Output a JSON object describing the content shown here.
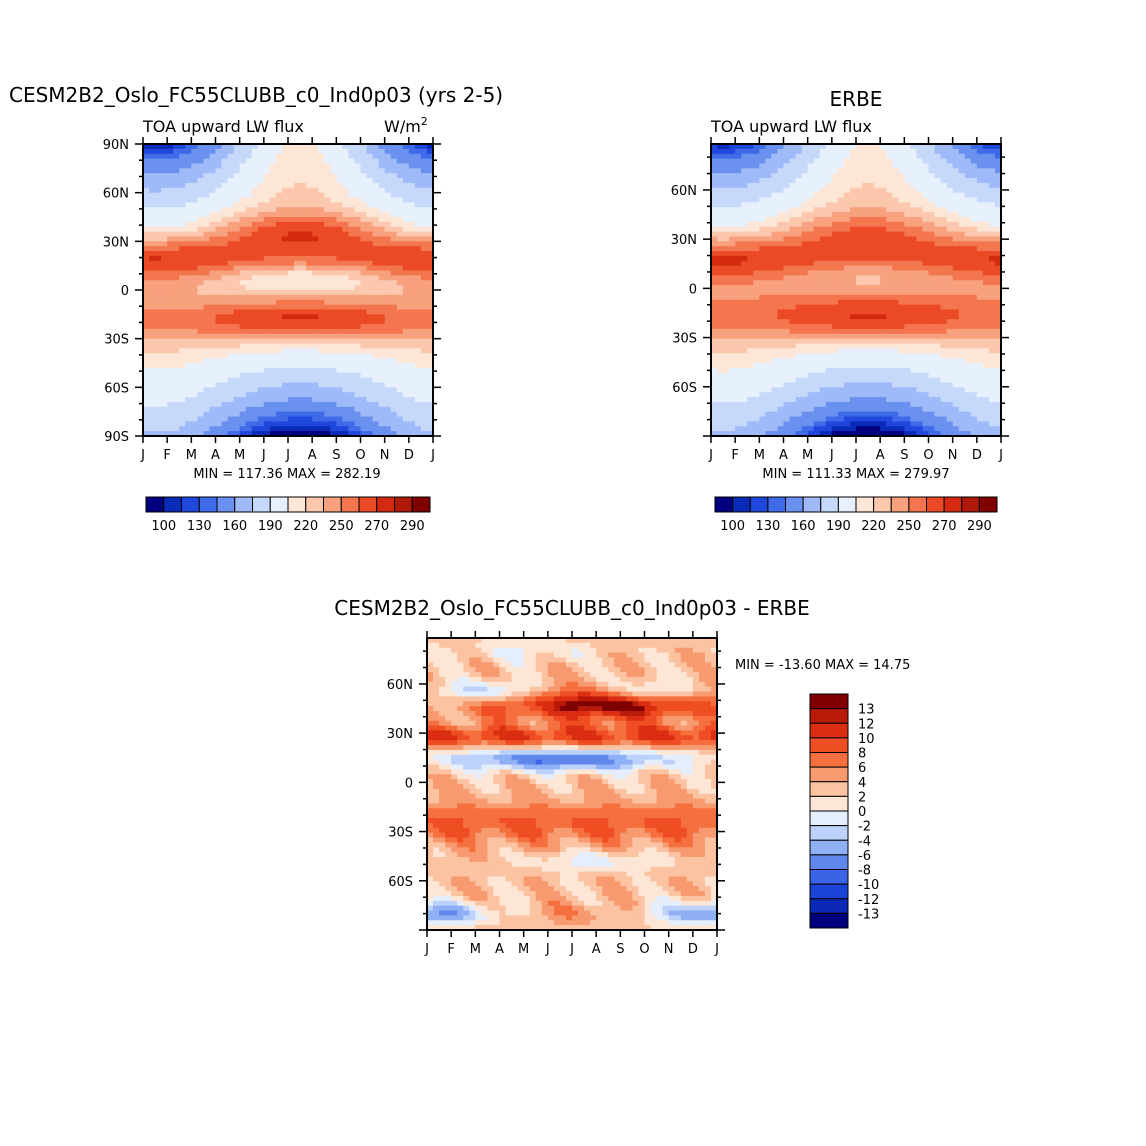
{
  "months": [
    "J",
    "F",
    "M",
    "A",
    "M",
    "J",
    "J",
    "A",
    "S",
    "O",
    "N",
    "D",
    "J"
  ],
  "colors": {
    "abs": [
      "#00007f",
      "#0a2ab8",
      "#1f47dc",
      "#3f6ae8",
      "#6a91f0",
      "#9fbaf8",
      "#c7d9fb",
      "#e6f1fd",
      "#fde6d6",
      "#fbc7ad",
      "#f8a17f",
      "#f4764f",
      "#ea4a25",
      "#d42a10",
      "#b01808",
      "#800000"
    ],
    "diff": [
      "#800000",
      "#b81a0a",
      "#da2d12",
      "#ef4d22",
      "#f5703e",
      "#f89a6f",
      "#fbc3a1",
      "#fde6d6",
      "#e4eefd",
      "#bcd2fa",
      "#8fb0f4",
      "#5f87ec",
      "#3b63e6",
      "#1c43d8",
      "#0a28b4",
      "#00007f"
    ]
  },
  "chart_data": [
    {
      "type": "heatmap",
      "name": "model",
      "title": "CESM2B2_Oslo_FC55CLUBB_c0_Ind0p03 (yrs 2-5)",
      "subtitle_left": "TOA upward LW flux",
      "units_base": "W/m",
      "units_sup": "2",
      "x": [
        "J",
        "F",
        "M",
        "A",
        "M",
        "J",
        "J",
        "A",
        "S",
        "O",
        "N",
        "D",
        "J"
      ],
      "y_ticks": [
        "90N",
        "60N",
        "30N",
        "0",
        "30S",
        "60S",
        "90S"
      ],
      "min_max": "MIN = 117.36 MAX = 282.19",
      "min": 117.36,
      "max": 282.19,
      "levels": [
        100,
        110,
        120,
        130,
        140,
        150,
        160,
        170,
        180,
        190,
        200,
        210,
        220,
        230,
        240,
        250,
        260,
        270,
        280,
        290
      ],
      "colorbar_labels": [
        "100",
        "130",
        "160",
        "190",
        "220",
        "250",
        "270",
        "290"
      ]
    },
    {
      "type": "heatmap",
      "name": "obs",
      "title": "ERBE",
      "subtitle_left": "TOA upward LW flux",
      "x": [
        "J",
        "F",
        "M",
        "A",
        "M",
        "J",
        "J",
        "A",
        "S",
        "O",
        "N",
        "D",
        "J"
      ],
      "y_ticks": [
        "60N",
        "30N",
        "0",
        "30S",
        "60S"
      ],
      "min_max": "MIN = 111.33 MAX = 279.97",
      "min": 111.33,
      "max": 279.97,
      "colorbar_labels": [
        "100",
        "130",
        "160",
        "190",
        "220",
        "250",
        "270",
        "290"
      ]
    },
    {
      "type": "heatmap",
      "name": "difference",
      "title": "CESM2B2_Oslo_FC55CLUBB_c0_Ind0p03 - ERBE",
      "x": [
        "J",
        "F",
        "M",
        "A",
        "M",
        "J",
        "J",
        "A",
        "S",
        "O",
        "N",
        "D",
        "J"
      ],
      "y_ticks": [
        "60N",
        "30N",
        "0",
        "30S",
        "60S"
      ],
      "min_max": "MIN = -13.60 MAX =  14.75",
      "min": -13.6,
      "max": 14.75,
      "colorbar_labels": [
        "13",
        "12",
        "10",
        "8",
        "6",
        "4",
        "2",
        "0",
        "-2",
        "-4",
        "-6",
        "-8",
        "-10",
        "-12",
        "-13"
      ]
    }
  ]
}
